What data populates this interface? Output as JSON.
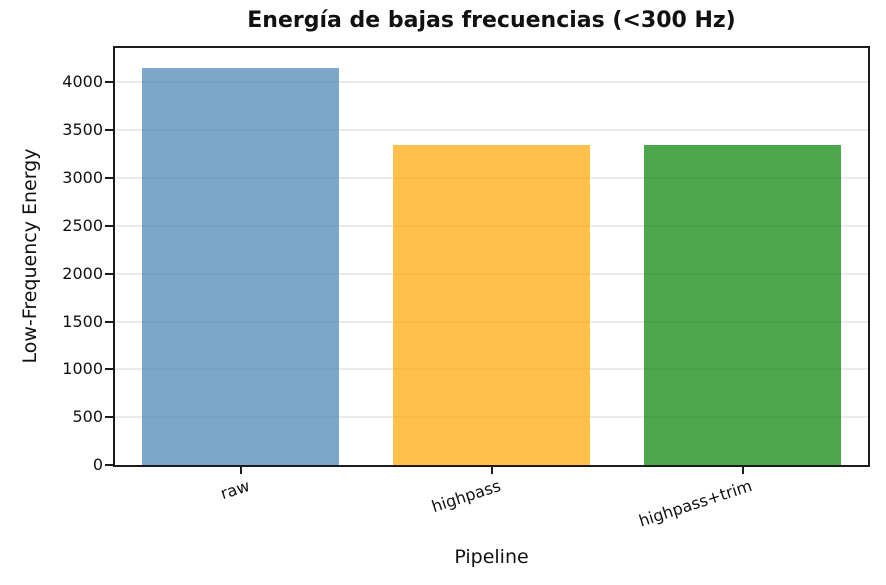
{
  "chart_data": {
    "type": "bar",
    "title": "Energía de bajas frecuencias (<300 Hz)",
    "xlabel": "Pipeline",
    "ylabel": "Low-Frequency Energy",
    "categories": [
      "raw",
      "highpass",
      "highpass+trim"
    ],
    "values": [
      4150,
      3350,
      3345
    ],
    "yticks": [
      0,
      500,
      1000,
      1500,
      2000,
      2500,
      3000,
      3500,
      4000
    ],
    "ylim": [
      0,
      4360
    ],
    "grid": true,
    "legend": "none",
    "bar_colors": [
      "rgba(70,130,180,0.7)",
      "rgba(255,165,0,0.7)",
      "rgba(0,128,0,0.7)"
    ],
    "grid_color": "#ebebeb",
    "axis_color": "#1c1c1c",
    "text_color": "#111111",
    "xtick_rotation_deg": 18
  }
}
